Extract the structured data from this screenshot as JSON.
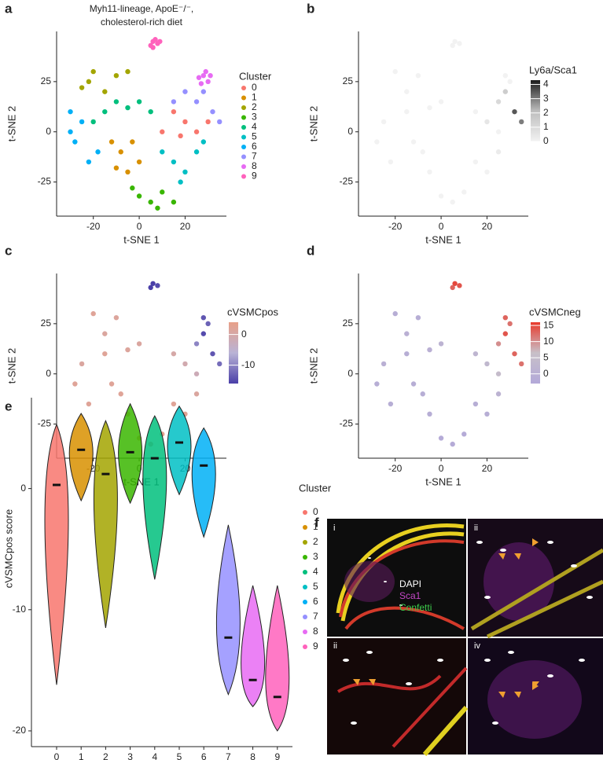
{
  "chart_data": [
    {
      "type": "scatter",
      "panel": "a",
      "title": [
        "Myh11-lineage, ApoE⁻/⁻,",
        "cholesterol-rich diet"
      ],
      "xlabel": "t-SNE 1",
      "ylabel": "t-SNE 2",
      "xlim": [
        -36,
        38
      ],
      "ylim": [
        -42,
        50
      ],
      "xticks": [
        -20,
        0,
        20
      ],
      "yticks": [
        -25,
        0,
        25
      ],
      "legend_title": "Cluster",
      "series": [
        {
          "name": "0",
          "color": "#F8766D",
          "x": [
            20,
            15,
            25,
            30,
            10,
            18
          ],
          "y": [
            5,
            10,
            0,
            5,
            0,
            -2
          ]
        },
        {
          "name": "1",
          "color": "#D89000",
          "x": [
            -8,
            -5,
            -12,
            0,
            -3,
            -10
          ],
          "y": [
            -10,
            -20,
            -5,
            -15,
            -5,
            -18
          ]
        },
        {
          "name": "2",
          "color": "#A3A500",
          "x": [
            -20,
            -10,
            -25,
            -15,
            -5,
            -22
          ],
          "y": [
            30,
            28,
            22,
            20,
            30,
            25
          ]
        },
        {
          "name": "3",
          "color": "#39B600",
          "x": [
            5,
            10,
            0,
            15,
            -3,
            8
          ],
          "y": [
            -35,
            -30,
            -32,
            -35,
            -28,
            -38
          ]
        },
        {
          "name": "4",
          "color": "#00BF7D",
          "x": [
            -15,
            -5,
            -20,
            0,
            -10,
            5
          ],
          "y": [
            10,
            12,
            5,
            15,
            15,
            10
          ]
        },
        {
          "name": "5",
          "color": "#00BFC4",
          "x": [
            15,
            20,
            10,
            25,
            18,
            28
          ],
          "y": [
            -15,
            -20,
            -10,
            -10,
            -25,
            -5
          ]
        },
        {
          "name": "6",
          "color": "#00B0F6",
          "x": [
            -28,
            -25,
            -30,
            -22,
            -18,
            -30
          ],
          "y": [
            -5,
            5,
            0,
            -15,
            -10,
            10
          ]
        },
        {
          "name": "7",
          "color": "#9590FF",
          "x": [
            25,
            32,
            20,
            35,
            28,
            15
          ],
          "y": [
            15,
            10,
            20,
            5,
            20,
            15
          ]
        },
        {
          "name": "8",
          "color": "#E76BF3",
          "x": [
            28,
            30,
            26,
            29,
            27,
            31
          ],
          "y": [
            28,
            25,
            27,
            30,
            24,
            28
          ]
        },
        {
          "name": "9",
          "color": "#FF62BC",
          "x": [
            6,
            8,
            5,
            7,
            9,
            6
          ],
          "y": [
            45,
            44,
            43,
            46,
            45,
            42
          ]
        }
      ]
    },
    {
      "type": "scatter",
      "panel": "b",
      "xlabel": "t-SNE 1",
      "ylabel": "t-SNE 2",
      "xlim": [
        -36,
        38
      ],
      "ylim": [
        -42,
        50
      ],
      "xticks": [
        -20,
        0,
        20
      ],
      "yticks": [
        -25,
        0,
        25
      ],
      "x": [
        20,
        15,
        25,
        -8,
        -5,
        -12,
        -20,
        -10,
        -15,
        5,
        10,
        0,
        -15,
        -5,
        0,
        15,
        20,
        25,
        -28,
        -25,
        -22,
        25,
        32,
        35,
        28,
        28,
        30,
        6,
        8,
        5
      ],
      "y": [
        5,
        10,
        0,
        -10,
        -20,
        -5,
        30,
        28,
        20,
        -35,
        -30,
        -32,
        10,
        12,
        15,
        -15,
        -20,
        -10,
        -5,
        5,
        -15,
        15,
        10,
        5,
        20,
        28,
        25,
        45,
        44,
        43
      ],
      "values": [
        0.5,
        0,
        0,
        0,
        0,
        0,
        0,
        0,
        0,
        0,
        0,
        0,
        0,
        0,
        0,
        0,
        0,
        0.3,
        0,
        0,
        0,
        1,
        3.5,
        3,
        1.5,
        0,
        0,
        0,
        0,
        0
      ],
      "colorbar": {
        "title": "Ly6a/Sca1",
        "lim": [
          0,
          4.3
        ],
        "ticks": [
          0,
          1,
          2,
          3,
          4
        ],
        "colors": [
          "#f2f2f2",
          "#bdbdbd",
          "#1a1a1a"
        ]
      }
    },
    {
      "type": "scatter",
      "panel": "c",
      "xlabel": "t-SNE 1",
      "ylabel": "t-SNE 2",
      "xlim": [
        -36,
        38
      ],
      "ylim": [
        -42,
        50
      ],
      "xticks": [
        -20,
        0,
        20
      ],
      "yticks": [
        -25,
        0,
        25
      ],
      "x": [
        20,
        15,
        25,
        -8,
        -5,
        -12,
        -20,
        -10,
        -15,
        5,
        10,
        0,
        -15,
        -5,
        0,
        15,
        20,
        25,
        -28,
        -25,
        -22,
        25,
        32,
        35,
        28,
        28,
        30,
        6,
        8,
        5
      ],
      "y": [
        5,
        10,
        0,
        -10,
        -20,
        -5,
        30,
        28,
        20,
        -35,
        -30,
        -32,
        10,
        12,
        15,
        -15,
        -20,
        -10,
        -5,
        5,
        -15,
        15,
        10,
        5,
        20,
        28,
        25,
        45,
        44,
        43
      ],
      "values": [
        -1,
        0,
        -2,
        2,
        2.5,
        2,
        2,
        1.5,
        1,
        3,
        3,
        3,
        2,
        1.5,
        1,
        2,
        2.5,
        1,
        2,
        1,
        2,
        -10,
        -14,
        -12,
        -15,
        -14,
        -13,
        -16,
        -15,
        -17
      ],
      "colorbar": {
        "title": "cVSMCpos",
        "lim": [
          -16,
          4
        ],
        "ticks": [
          -10,
          0
        ],
        "colors": [
          "#4A3FA8",
          "#B9B3D6",
          "#E8A088"
        ]
      }
    },
    {
      "type": "scatter",
      "panel": "d",
      "xlabel": "t-SNE 1",
      "ylabel": "t-SNE 2",
      "xlim": [
        -36,
        38
      ],
      "ylim": [
        -42,
        50
      ],
      "xticks": [
        -20,
        0,
        20
      ],
      "yticks": [
        -25,
        0,
        25
      ],
      "x": [
        20,
        15,
        25,
        -8,
        -5,
        -12,
        -20,
        -10,
        -15,
        5,
        10,
        0,
        -15,
        -5,
        0,
        15,
        20,
        25,
        -28,
        -25,
        -22,
        25,
        32,
        35,
        28,
        28,
        30,
        6,
        8,
        5
      ],
      "y": [
        5,
        10,
        0,
        -10,
        -20,
        -5,
        30,
        28,
        20,
        -35,
        -30,
        -32,
        10,
        12,
        15,
        -15,
        -20,
        -10,
        -5,
        5,
        -15,
        15,
        10,
        5,
        20,
        28,
        25,
        45,
        44,
        43
      ],
      "values": [
        3,
        2,
        5,
        -1,
        -1,
        -1,
        -1,
        -1,
        0,
        -2,
        -2,
        -2,
        -1,
        0,
        1,
        -1,
        -1,
        1,
        -1,
        0,
        -1,
        10,
        13,
        12,
        14,
        13,
        12,
        15,
        14,
        13
      ],
      "colorbar": {
        "title": "cVSMCneg",
        "lim": [
          -3,
          16
        ],
        "ticks": [
          0,
          5,
          10,
          15
        ],
        "colors": [
          "#B3A9D9",
          "#C8C0C8",
          "#E8392B"
        ]
      }
    },
    {
      "type": "violin",
      "panel": "e",
      "ylabel": "cVSMCpos score",
      "legend_title": "Cluster",
      "categories": [
        "0",
        "1",
        "2",
        "3",
        "4",
        "5",
        "6",
        "7",
        "8",
        "9"
      ],
      "colors": [
        "#F8766D",
        "#D89000",
        "#A3A500",
        "#39B600",
        "#00BF7D",
        "#00BFC4",
        "#00B0F6",
        "#9590FF",
        "#E76BF3",
        "#FF62BC"
      ],
      "min": [
        -16.2,
        -1,
        -11.5,
        -1.2,
        -7.5,
        -0.5,
        -4,
        -17,
        -18,
        -20
      ],
      "median": [
        0.3,
        3.2,
        1.2,
        3,
        2.5,
        3.8,
        1.9,
        -12.3,
        -15.8,
        -17.2
      ],
      "max": [
        5.3,
        6.2,
        5.6,
        7,
        6,
        6.8,
        5,
        -3,
        -8,
        -8
      ],
      "ylim": [
        -21.3,
        7.5
      ],
      "yticks": [
        -20,
        -10,
        0
      ]
    }
  ],
  "figure_f": {
    "panel": "f",
    "subpanels": [
      "i",
      "ii",
      "ii",
      "iv"
    ],
    "channels": [
      {
        "name": "DAPI",
        "color": "#ffffff"
      },
      {
        "name": "Sca1",
        "color": "#c548c8"
      },
      {
        "name": "Confetti",
        "color": "#3cc84a"
      }
    ]
  }
}
